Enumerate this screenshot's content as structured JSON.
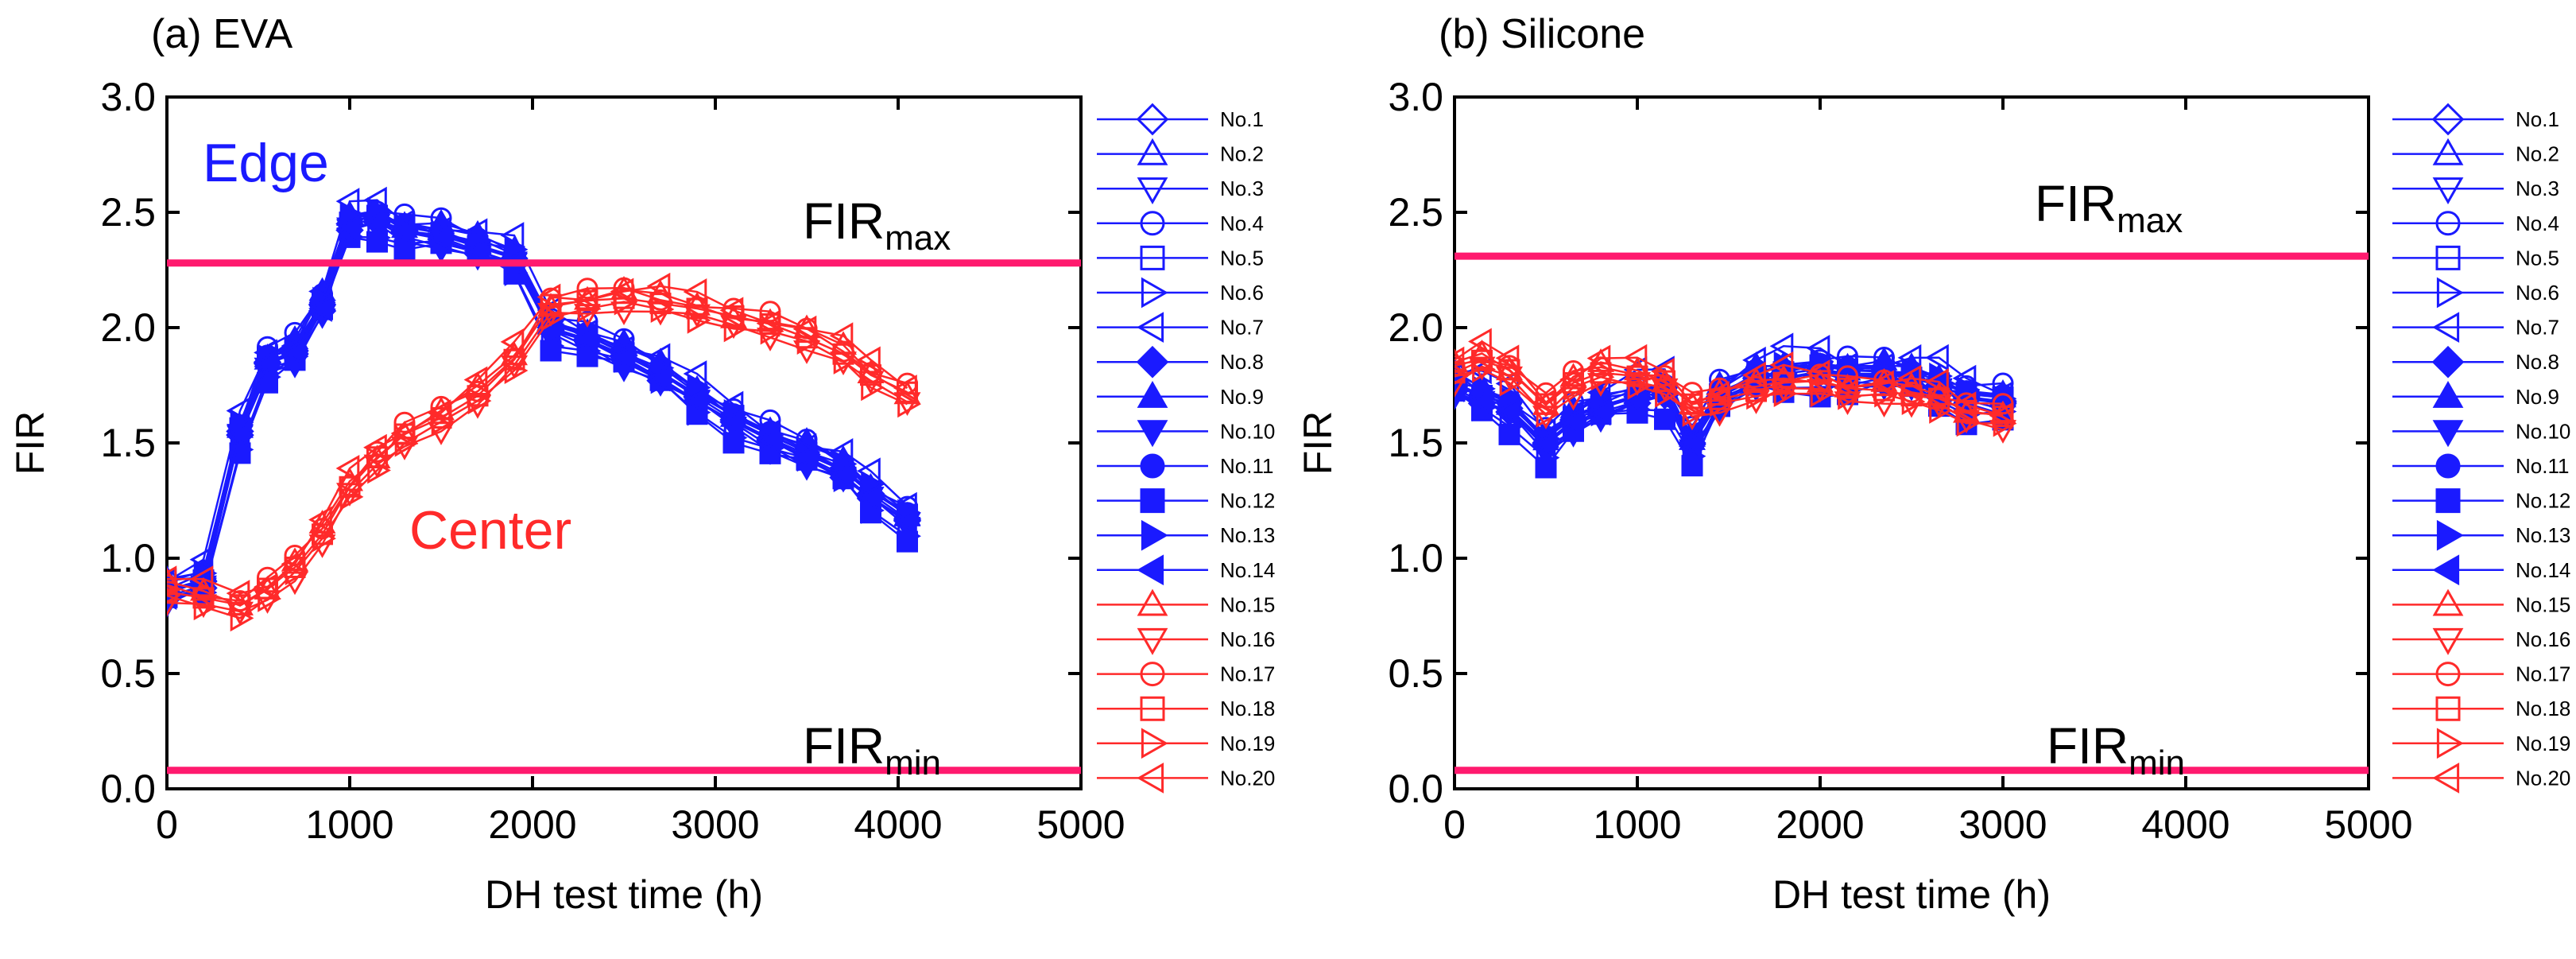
{
  "colors": {
    "blue": "#1a1aff",
    "red": "#ff2a2a",
    "limit": "#ff1a6e",
    "axis": "#000000"
  },
  "chart_data": [
    {
      "id": "eva",
      "type": "line",
      "title": "(a) EVA",
      "xlabel": "DH test time (h)",
      "ylabel": "FIR",
      "xlim": [
        0,
        5000
      ],
      "ylim": [
        0.0,
        3.0
      ],
      "xticks": [
        "0",
        "1000",
        "2000",
        "3000",
        "4000",
        "5000"
      ],
      "yticks": [
        "0.0",
        "0.5",
        "1.0",
        "1.5",
        "2.0",
        "2.5",
        "3.0"
      ],
      "hlines": [
        {
          "name": "FIRmax",
          "value": 2.28,
          "label_main": "FIR",
          "label_sub": "max"
        },
        {
          "name": "FIRmin",
          "value": 0.08,
          "label_main": "FIR",
          "label_sub": "min"
        }
      ],
      "annotations": [
        {
          "text": "Edge",
          "color": "blue",
          "x": 100,
          "y": 2.65
        },
        {
          "text": "Center",
          "color": "red",
          "x": 1300,
          "y": 1.1
        }
      ],
      "groups": [
        {
          "name": "Edge (No.1–No.14)",
          "color": "blue",
          "x": [
            0,
            200,
            400,
            550,
            700,
            850,
            1000,
            1150,
            1300,
            1500,
            1700,
            1900,
            2100,
            2300,
            2500,
            2700,
            2900,
            3100,
            3300,
            3500,
            3700,
            3850,
            4050
          ],
          "values": [
            0.85,
            0.9,
            1.55,
            1.85,
            1.9,
            2.1,
            2.45,
            2.47,
            2.42,
            2.4,
            2.35,
            2.3,
            2.0,
            1.95,
            1.88,
            1.8,
            1.7,
            1.6,
            1.52,
            1.45,
            1.38,
            1.28,
            1.17
          ]
        },
        {
          "name": "Center (No.15–No.20)",
          "color": "red",
          "x": [
            0,
            200,
            400,
            550,
            700,
            850,
            1000,
            1150,
            1300,
            1500,
            1700,
            1900,
            2100,
            2300,
            2500,
            2700,
            2900,
            3100,
            3300,
            3500,
            3700,
            3850,
            4050
          ],
          "values": [
            0.85,
            0.82,
            0.78,
            0.85,
            0.95,
            1.1,
            1.3,
            1.42,
            1.52,
            1.6,
            1.7,
            1.85,
            2.08,
            2.1,
            2.12,
            2.1,
            2.07,
            2.03,
            2.0,
            1.95,
            1.88,
            1.78,
            1.7
          ]
        }
      ],
      "series_offsets": [
        0.0,
        0.05,
        -0.05,
        0.08,
        0.02,
        -0.08,
        0.1,
        -0.03,
        0.06,
        -0.06,
        0.03,
        -0.1,
        0.04,
        -0.02,
        0.05,
        -0.05,
        0.07,
        0.02,
        -0.04,
        0.09
      ]
    },
    {
      "id": "silicone",
      "type": "line",
      "title": "(b) Silicone",
      "xlabel": "DH test time (h)",
      "ylabel": "FIR",
      "xlim": [
        0,
        5000
      ],
      "ylim": [
        0.0,
        3.0
      ],
      "xticks": [
        "0",
        "1000",
        "2000",
        "3000",
        "4000",
        "5000"
      ],
      "yticks": [
        "0.0",
        "0.5",
        "1.0",
        "1.5",
        "2.0",
        "2.5",
        "3.0"
      ],
      "hlines": [
        {
          "name": "FIRmax",
          "value": 2.31,
          "label_main": "FIR",
          "label_sub": "max"
        },
        {
          "name": "FIRmin",
          "value": 0.08,
          "label_main": "FIR",
          "label_sub": "min"
        }
      ],
      "annotations": [],
      "groups": [
        {
          "name": "Edge (No.1–No.14)",
          "color": "blue",
          "x": [
            0,
            150,
            300,
            500,
            650,
            800,
            1000,
            1150,
            1300,
            1450,
            1650,
            1800,
            2000,
            2150,
            2350,
            2500,
            2650,
            2800,
            3000
          ],
          "values": [
            1.75,
            1.7,
            1.65,
            1.5,
            1.6,
            1.65,
            1.7,
            1.72,
            1.5,
            1.7,
            1.78,
            1.8,
            1.82,
            1.8,
            1.8,
            1.78,
            1.75,
            1.7,
            1.68
          ]
        },
        {
          "name": "Center (No.15–No.20)",
          "color": "red",
          "x": [
            0,
            150,
            300,
            500,
            650,
            800,
            1000,
            1150,
            1300,
            1450,
            1650,
            1800,
            2000,
            2150,
            2350,
            2500,
            2650,
            2800,
            3000
          ],
          "values": [
            1.8,
            1.85,
            1.8,
            1.65,
            1.75,
            1.8,
            1.78,
            1.75,
            1.65,
            1.68,
            1.72,
            1.75,
            1.75,
            1.72,
            1.72,
            1.7,
            1.68,
            1.62,
            1.6
          ]
        }
      ],
      "series_offsets": [
        0.0,
        0.05,
        -0.05,
        0.08,
        0.02,
        -0.08,
        0.12,
        -0.03,
        0.06,
        -0.06,
        0.03,
        -0.12,
        0.04,
        -0.02,
        0.05,
        -0.05,
        0.07,
        0.02,
        -0.04,
        0.09
      ]
    }
  ],
  "legend": {
    "entries": [
      {
        "label": "No.1",
        "color": "blue",
        "marker": "diamond",
        "filled": false
      },
      {
        "label": "No.2",
        "color": "blue",
        "marker": "triangle-up",
        "filled": false
      },
      {
        "label": "No.3",
        "color": "blue",
        "marker": "triangle-down",
        "filled": false
      },
      {
        "label": "No.4",
        "color": "blue",
        "marker": "circle",
        "filled": false
      },
      {
        "label": "No.5",
        "color": "blue",
        "marker": "square",
        "filled": false
      },
      {
        "label": "No.6",
        "color": "blue",
        "marker": "triangle-right",
        "filled": false
      },
      {
        "label": "No.7",
        "color": "blue",
        "marker": "triangle-left",
        "filled": false
      },
      {
        "label": "No.8",
        "color": "blue",
        "marker": "diamond",
        "filled": true
      },
      {
        "label": "No.9",
        "color": "blue",
        "marker": "triangle-up",
        "filled": true
      },
      {
        "label": "No.10",
        "color": "blue",
        "marker": "triangle-down",
        "filled": true
      },
      {
        "label": "No.11",
        "color": "blue",
        "marker": "circle",
        "filled": true
      },
      {
        "label": "No.12",
        "color": "blue",
        "marker": "square",
        "filled": true
      },
      {
        "label": "No.13",
        "color": "blue",
        "marker": "triangle-right",
        "filled": true
      },
      {
        "label": "No.14",
        "color": "blue",
        "marker": "triangle-left",
        "filled": true
      },
      {
        "label": "No.15",
        "color": "red",
        "marker": "triangle-up",
        "filled": false
      },
      {
        "label": "No.16",
        "color": "red",
        "marker": "triangle-down",
        "filled": false
      },
      {
        "label": "No.17",
        "color": "red",
        "marker": "circle",
        "filled": false
      },
      {
        "label": "No.18",
        "color": "red",
        "marker": "square",
        "filled": false
      },
      {
        "label": "No.19",
        "color": "red",
        "marker": "triangle-right",
        "filled": false
      },
      {
        "label": "No.20",
        "color": "red",
        "marker": "triangle-left",
        "filled": false
      }
    ]
  }
}
